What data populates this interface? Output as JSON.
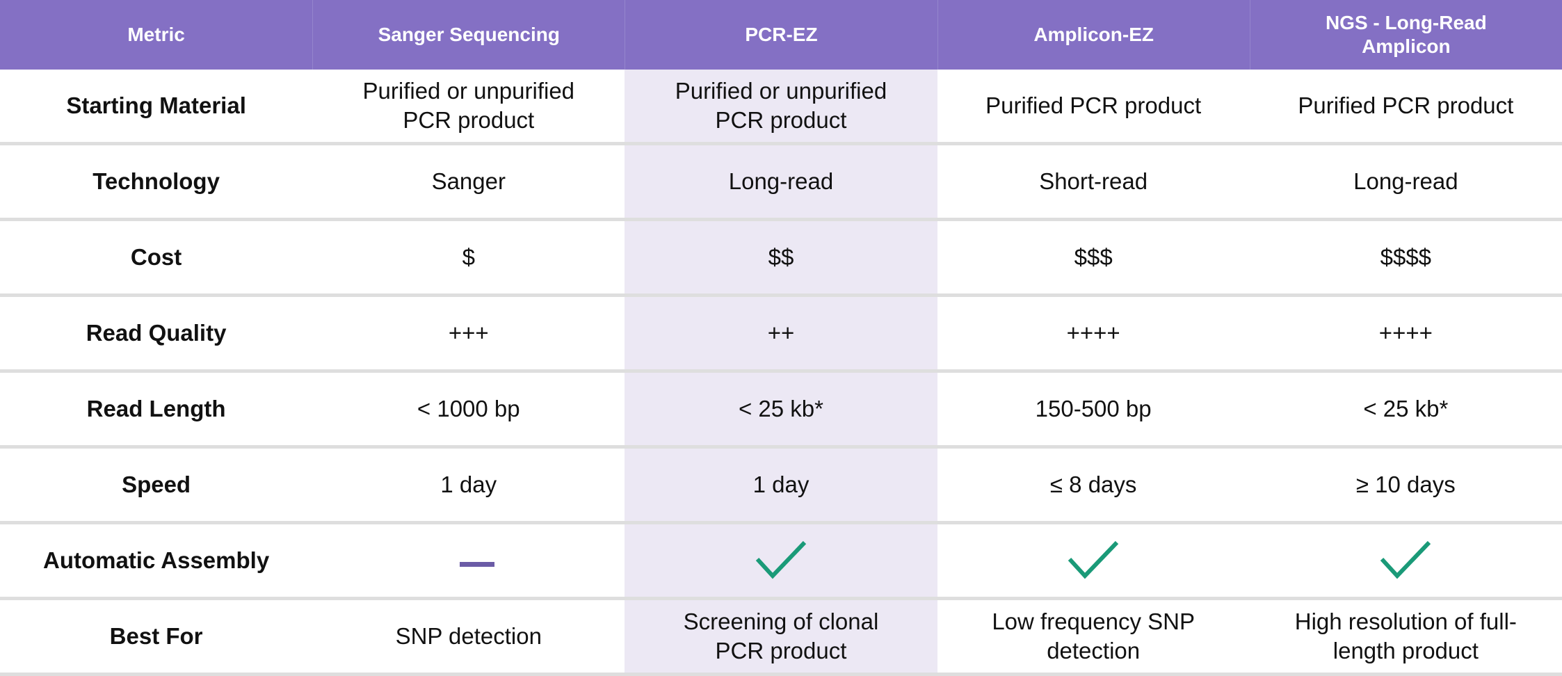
{
  "colors": {
    "header": "#8470c4",
    "highlight_column": "#ece8f4",
    "check": "#1a9a78",
    "dash": "#6b5ba6"
  },
  "headers": [
    "Metric",
    "Sanger Sequencing",
    "PCR-EZ",
    "Amplicon-EZ",
    "NGS - Long-Read Amplicon"
  ],
  "rows": [
    {
      "metric": "Starting Material",
      "values": [
        "Purified or unpurified PCR product",
        "Purified or unpurified PCR product",
        "Purified PCR product",
        "Purified PCR product"
      ]
    },
    {
      "metric": "Technology",
      "values": [
        "Sanger",
        "Long-read",
        "Short-read",
        "Long-read"
      ]
    },
    {
      "metric": "Cost",
      "values": [
        "$",
        "$$",
        "$$$",
        "$$$$"
      ]
    },
    {
      "metric": "Read Quality",
      "values": [
        "+++",
        "++",
        "++++",
        "++++"
      ]
    },
    {
      "metric": "Read Length",
      "values": [
        "< 1000 bp",
        "< 25 kb*",
        "150-500 bp",
        "< 25 kb*"
      ]
    },
    {
      "metric": "Speed",
      "values": [
        "1 day",
        "1 day",
        "≤ 8 days",
        "≥ 10 days"
      ]
    },
    {
      "metric": "Automatic Assembly",
      "values": [
        "dash-icon",
        "check-icon",
        "check-icon",
        "check-icon"
      ]
    },
    {
      "metric": "Best For",
      "values": [
        "SNP detection",
        "Screening of clonal PCR product",
        "Low frequency SNP detection",
        "High resolution of full-length product"
      ]
    }
  ]
}
